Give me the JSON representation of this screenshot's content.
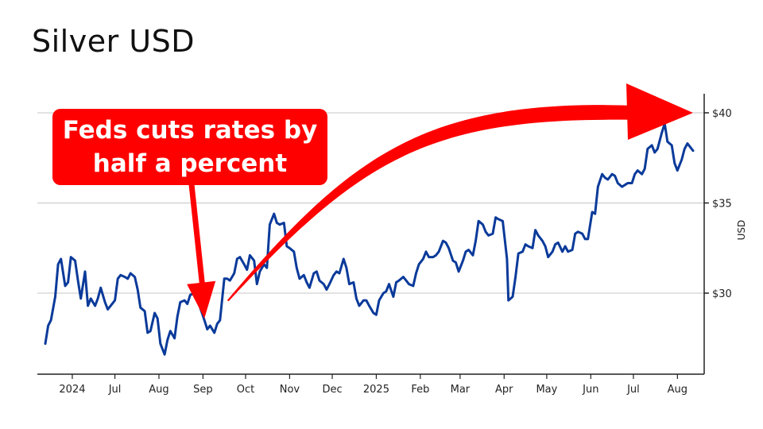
{
  "page": {
    "title": "Silver USD"
  },
  "chart_data": {
    "type": "line",
    "title": "Silver USD",
    "xlabel": "",
    "ylabel": "USD",
    "y_axis_side": "right",
    "ylim": [
      26,
      41.5
    ],
    "y_ticks": [
      30,
      35,
      40
    ],
    "y_tick_labels": [
      "$30",
      "$35",
      "$40"
    ],
    "x_range": [
      "2024-05-13",
      "2025-08-12"
    ],
    "x_ticks": [
      {
        "label": "2024",
        "date": "2024-06-01"
      },
      {
        "label": "Jul",
        "date": "2024-07-01"
      },
      {
        "label": "Aug",
        "date": "2024-08-01"
      },
      {
        "label": "Sep",
        "date": "2024-09-01"
      },
      {
        "label": "Oct",
        "date": "2024-10-01"
      },
      {
        "label": "Nov",
        "date": "2024-11-01"
      },
      {
        "label": "Dec",
        "date": "2024-12-01"
      },
      {
        "label": "2025",
        "date": "2025-01-01"
      },
      {
        "label": "Feb",
        "date": "2025-02-01"
      },
      {
        "label": "Mar",
        "date": "2025-03-01"
      },
      {
        "label": "Apr",
        "date": "2025-04-01"
      },
      {
        "label": "May",
        "date": "2025-05-01"
      },
      {
        "label": "Jun",
        "date": "2025-06-01"
      },
      {
        "label": "Jul",
        "date": "2025-07-01"
      },
      {
        "label": "Aug",
        "date": "2025-08-01"
      }
    ],
    "grid": "horizontal",
    "line_color": "#0a3a9a",
    "series": [
      {
        "points": [
          [
            "2024-05-13",
            27.2
          ],
          [
            "2024-05-15",
            28.2
          ],
          [
            "2024-05-17",
            28.5
          ],
          [
            "2024-05-20",
            29.8
          ],
          [
            "2024-05-22",
            31.6
          ],
          [
            "2024-05-24",
            31.9
          ],
          [
            "2024-05-27",
            30.4
          ],
          [
            "2024-05-29",
            30.6
          ],
          [
            "2024-05-31",
            32.0
          ],
          [
            "2024-06-03",
            31.8
          ],
          [
            "2024-06-05",
            30.7
          ],
          [
            "2024-06-07",
            29.7
          ],
          [
            "2024-06-10",
            31.2
          ],
          [
            "2024-06-12",
            29.3
          ],
          [
            "2024-06-14",
            29.7
          ],
          [
            "2024-06-17",
            29.3
          ],
          [
            "2024-06-19",
            29.7
          ],
          [
            "2024-06-21",
            30.3
          ],
          [
            "2024-06-24",
            29.5
          ],
          [
            "2024-06-26",
            29.1
          ],
          [
            "2024-06-28",
            29.3
          ],
          [
            "2024-07-01",
            29.6
          ],
          [
            "2024-07-03",
            30.8
          ],
          [
            "2024-07-05",
            31.0
          ],
          [
            "2024-07-08",
            30.9
          ],
          [
            "2024-07-10",
            30.8
          ],
          [
            "2024-07-12",
            31.1
          ],
          [
            "2024-07-15",
            30.9
          ],
          [
            "2024-07-17",
            30.2
          ],
          [
            "2024-07-19",
            29.2
          ],
          [
            "2024-07-22",
            29.0
          ],
          [
            "2024-07-24",
            27.8
          ],
          [
            "2024-07-26",
            27.9
          ],
          [
            "2024-07-29",
            28.9
          ],
          [
            "2024-07-31",
            28.6
          ],
          [
            "2024-08-02",
            27.2
          ],
          [
            "2024-08-05",
            26.6
          ],
          [
            "2024-08-07",
            27.4
          ],
          [
            "2024-08-09",
            27.9
          ],
          [
            "2024-08-12",
            27.5
          ],
          [
            "2024-08-14",
            28.7
          ],
          [
            "2024-08-16",
            29.5
          ],
          [
            "2024-08-19",
            29.6
          ],
          [
            "2024-08-21",
            29.4
          ],
          [
            "2024-08-23",
            29.9
          ],
          [
            "2024-08-26",
            30.0
          ],
          [
            "2024-08-28",
            29.6
          ],
          [
            "2024-08-30",
            29.2
          ],
          [
            "2024-09-02",
            28.5
          ],
          [
            "2024-09-04",
            28.0
          ],
          [
            "2024-09-06",
            28.2
          ],
          [
            "2024-09-09",
            27.8
          ],
          [
            "2024-09-11",
            28.3
          ],
          [
            "2024-09-13",
            28.5
          ],
          [
            "2024-09-16",
            30.8
          ],
          [
            "2024-09-18",
            30.8
          ],
          [
            "2024-09-20",
            30.7
          ],
          [
            "2024-09-23",
            31.1
          ],
          [
            "2024-09-25",
            31.9
          ],
          [
            "2024-09-27",
            32.0
          ],
          [
            "2024-09-30",
            31.6
          ],
          [
            "2024-10-02",
            31.3
          ],
          [
            "2024-10-04",
            32.1
          ],
          [
            "2024-10-07",
            31.8
          ],
          [
            "2024-10-09",
            30.5
          ],
          [
            "2024-10-11",
            31.2
          ],
          [
            "2024-10-14",
            31.6
          ],
          [
            "2024-10-16",
            31.4
          ],
          [
            "2024-10-18",
            33.8
          ],
          [
            "2024-10-21",
            34.4
          ],
          [
            "2024-10-23",
            33.9
          ],
          [
            "2024-10-25",
            33.8
          ],
          [
            "2024-10-28",
            33.9
          ],
          [
            "2024-10-30",
            32.6
          ],
          [
            "2024-11-01",
            32.5
          ],
          [
            "2024-11-04",
            32.3
          ],
          [
            "2024-11-06",
            31.4
          ],
          [
            "2024-11-08",
            30.8
          ],
          [
            "2024-11-11",
            31.0
          ],
          [
            "2024-11-13",
            30.6
          ],
          [
            "2024-11-15",
            30.3
          ],
          [
            "2024-11-18",
            31.1
          ],
          [
            "2024-11-20",
            31.2
          ],
          [
            "2024-11-22",
            30.7
          ],
          [
            "2024-11-25",
            30.5
          ],
          [
            "2024-11-27",
            30.2
          ],
          [
            "2024-11-29",
            30.5
          ],
          [
            "2024-12-02",
            31.0
          ],
          [
            "2024-12-04",
            31.2
          ],
          [
            "2024-12-06",
            31.1
          ],
          [
            "2024-12-09",
            31.9
          ],
          [
            "2024-12-11",
            31.4
          ],
          [
            "2024-12-13",
            30.5
          ],
          [
            "2024-12-16",
            30.6
          ],
          [
            "2024-12-18",
            29.7
          ],
          [
            "2024-12-20",
            29.3
          ],
          [
            "2024-12-23",
            29.6
          ],
          [
            "2024-12-25",
            29.6
          ],
          [
            "2024-12-27",
            29.3
          ],
          [
            "2024-12-30",
            28.9
          ],
          [
            "2025-01-01",
            28.8
          ],
          [
            "2025-01-03",
            29.6
          ],
          [
            "2025-01-06",
            30.0
          ],
          [
            "2025-01-08",
            30.1
          ],
          [
            "2025-01-10",
            30.5
          ],
          [
            "2025-01-13",
            29.8
          ],
          [
            "2025-01-15",
            30.6
          ],
          [
            "2025-01-17",
            30.7
          ],
          [
            "2025-01-20",
            30.9
          ],
          [
            "2025-01-22",
            30.7
          ],
          [
            "2025-01-24",
            30.5
          ],
          [
            "2025-01-27",
            30.4
          ],
          [
            "2025-01-29",
            31.1
          ],
          [
            "2025-01-31",
            31.6
          ],
          [
            "2025-02-03",
            31.9
          ],
          [
            "2025-02-05",
            32.3
          ],
          [
            "2025-02-07",
            32.0
          ],
          [
            "2025-02-10",
            32.0
          ],
          [
            "2025-02-12",
            32.1
          ],
          [
            "2025-02-14",
            32.3
          ],
          [
            "2025-02-17",
            32.9
          ],
          [
            "2025-02-19",
            32.8
          ],
          [
            "2025-02-21",
            32.5
          ],
          [
            "2025-02-24",
            31.8
          ],
          [
            "2025-02-26",
            31.7
          ],
          [
            "2025-02-28",
            31.2
          ],
          [
            "2025-03-03",
            31.8
          ],
          [
            "2025-03-05",
            32.3
          ],
          [
            "2025-03-07",
            32.4
          ],
          [
            "2025-03-10",
            32.1
          ],
          [
            "2025-03-12",
            32.9
          ],
          [
            "2025-03-14",
            34.0
          ],
          [
            "2025-03-17",
            33.8
          ],
          [
            "2025-03-19",
            33.4
          ],
          [
            "2025-03-21",
            33.2
          ],
          [
            "2025-03-24",
            33.3
          ],
          [
            "2025-03-26",
            34.2
          ],
          [
            "2025-03-28",
            34.1
          ],
          [
            "2025-03-31",
            34.0
          ],
          [
            "2025-04-03",
            31.9
          ],
          [
            "2025-04-04",
            29.6
          ],
          [
            "2025-04-07",
            29.8
          ],
          [
            "2025-04-09",
            30.9
          ],
          [
            "2025-04-11",
            32.2
          ],
          [
            "2025-04-14",
            32.3
          ],
          [
            "2025-04-16",
            32.7
          ],
          [
            "2025-04-18",
            32.6
          ],
          [
            "2025-04-21",
            32.5
          ],
          [
            "2025-04-23",
            33.5
          ],
          [
            "2025-04-25",
            33.2
          ],
          [
            "2025-04-28",
            32.9
          ],
          [
            "2025-04-30",
            32.6
          ],
          [
            "2025-05-02",
            32.0
          ],
          [
            "2025-05-05",
            32.3
          ],
          [
            "2025-05-07",
            32.7
          ],
          [
            "2025-05-09",
            32.8
          ],
          [
            "2025-05-12",
            32.3
          ],
          [
            "2025-05-14",
            32.6
          ],
          [
            "2025-05-16",
            32.3
          ],
          [
            "2025-05-19",
            32.4
          ],
          [
            "2025-05-21",
            33.3
          ],
          [
            "2025-05-23",
            33.4
          ],
          [
            "2025-05-26",
            33.3
          ],
          [
            "2025-05-28",
            33.0
          ],
          [
            "2025-05-30",
            33.0
          ],
          [
            "2025-06-02",
            34.5
          ],
          [
            "2025-06-04",
            34.4
          ],
          [
            "2025-06-06",
            35.9
          ],
          [
            "2025-06-09",
            36.6
          ],
          [
            "2025-06-11",
            36.4
          ],
          [
            "2025-06-13",
            36.3
          ],
          [
            "2025-06-16",
            36.6
          ],
          [
            "2025-06-18",
            36.5
          ],
          [
            "2025-06-20",
            36.1
          ],
          [
            "2025-06-23",
            35.9
          ],
          [
            "2025-06-25",
            36.0
          ],
          [
            "2025-06-27",
            36.1
          ],
          [
            "2025-06-30",
            36.1
          ],
          [
            "2025-07-02",
            36.6
          ],
          [
            "2025-07-04",
            36.8
          ],
          [
            "2025-07-07",
            36.6
          ],
          [
            "2025-07-09",
            36.9
          ],
          [
            "2025-07-11",
            38.0
          ],
          [
            "2025-07-14",
            38.2
          ],
          [
            "2025-07-16",
            37.8
          ],
          [
            "2025-07-18",
            38.0
          ],
          [
            "2025-07-21",
            38.9
          ],
          [
            "2025-07-23",
            39.4
          ],
          [
            "2025-07-25",
            38.4
          ],
          [
            "2025-07-28",
            38.2
          ],
          [
            "2025-07-30",
            37.2
          ],
          [
            "2025-08-01",
            36.8
          ],
          [
            "2025-08-04",
            37.4
          ],
          [
            "2025-08-06",
            38.0
          ],
          [
            "2025-08-08",
            38.3
          ],
          [
            "2025-08-12",
            37.9
          ]
        ]
      }
    ],
    "annotations": [
      {
        "type": "callout",
        "text_lines": [
          "Feds cuts rates by",
          "half a percent"
        ],
        "color": "#ff0000",
        "text_color": "#ffffff",
        "arrow_to": {
          "date": "2024-09-02",
          "value": 28.6
        }
      },
      {
        "type": "curved_arrow",
        "color": "#ff0000",
        "from": {
          "date": "2024-09-18",
          "value": 29.6
        },
        "to": {
          "date": "2025-08-12",
          "value": 40.0
        }
      }
    ]
  }
}
